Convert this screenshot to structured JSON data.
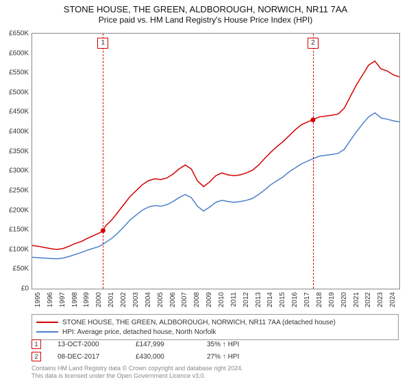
{
  "title": "STONE HOUSE, THE GREEN, ALDBOROUGH, NORWICH, NR11 7AA",
  "subtitle": "Price paid vs. HM Land Registry's House Price Index (HPI)",
  "chart": {
    "type": "line",
    "background_color": "#ffffff",
    "grid_color": "#e9e9e9",
    "axis_color": "#888888",
    "tick_fontsize": 10,
    "ylim": [
      0,
      650000
    ],
    "ytick_step": 50000,
    "ytick_labels": [
      "£0",
      "£50K",
      "£100K",
      "£150K",
      "£200K",
      "£250K",
      "£300K",
      "£350K",
      "£400K",
      "£450K",
      "£500K",
      "£550K",
      "£600K",
      "£650K"
    ],
    "xlim": [
      1995,
      2025
    ],
    "xtick_labels": [
      "1995",
      "1996",
      "1997",
      "1998",
      "1999",
      "2000",
      "2001",
      "2002",
      "2003",
      "2004",
      "2005",
      "2006",
      "2007",
      "2008",
      "2009",
      "2010",
      "2011",
      "2012",
      "2013",
      "2014",
      "2015",
      "2016",
      "2017",
      "2018",
      "2019",
      "2020",
      "2021",
      "2022",
      "2023",
      "2024"
    ],
    "series": [
      {
        "name": "price_paid",
        "label": "STONE HOUSE, THE GREEN, ALDBOROUGH, NORWICH, NR11 7AA (detached house)",
        "color": "#d40000",
        "line_width": 1.5,
        "data": [
          [
            1995,
            110000
          ],
          [
            1995.5,
            108000
          ],
          [
            1996,
            105000
          ],
          [
            1996.5,
            102000
          ],
          [
            1997,
            100000
          ],
          [
            1997.5,
            102000
          ],
          [
            1998,
            108000
          ],
          [
            1998.5,
            115000
          ],
          [
            1999,
            120000
          ],
          [
            1999.5,
            128000
          ],
          [
            2000,
            135000
          ],
          [
            2000.5,
            142000
          ],
          [
            2000.79,
            147999
          ],
          [
            2001,
            160000
          ],
          [
            2001.5,
            175000
          ],
          [
            2002,
            195000
          ],
          [
            2002.5,
            215000
          ],
          [
            2003,
            235000
          ],
          [
            2003.5,
            250000
          ],
          [
            2004,
            265000
          ],
          [
            2004.5,
            275000
          ],
          [
            2005,
            280000
          ],
          [
            2005.5,
            278000
          ],
          [
            2006,
            282000
          ],
          [
            2006.5,
            292000
          ],
          [
            2007,
            305000
          ],
          [
            2007.5,
            315000
          ],
          [
            2008,
            305000
          ],
          [
            2008.5,
            275000
          ],
          [
            2009,
            260000
          ],
          [
            2009.5,
            272000
          ],
          [
            2010,
            288000
          ],
          [
            2010.5,
            295000
          ],
          [
            2011,
            290000
          ],
          [
            2011.5,
            288000
          ],
          [
            2012,
            290000
          ],
          [
            2012.5,
            295000
          ],
          [
            2013,
            302000
          ],
          [
            2013.5,
            315000
          ],
          [
            2014,
            332000
          ],
          [
            2014.5,
            348000
          ],
          [
            2015,
            362000
          ],
          [
            2015.5,
            375000
          ],
          [
            2016,
            390000
          ],
          [
            2016.5,
            405000
          ],
          [
            2017,
            418000
          ],
          [
            2017.5,
            425000
          ],
          [
            2017.94,
            430000
          ],
          [
            2018,
            432000
          ],
          [
            2018.5,
            438000
          ],
          [
            2019,
            440000
          ],
          [
            2019.5,
            442000
          ],
          [
            2020,
            445000
          ],
          [
            2020.5,
            460000
          ],
          [
            2021,
            490000
          ],
          [
            2021.5,
            520000
          ],
          [
            2022,
            545000
          ],
          [
            2022.5,
            570000
          ],
          [
            2023,
            580000
          ],
          [
            2023.5,
            560000
          ],
          [
            2024,
            555000
          ],
          [
            2024.5,
            545000
          ],
          [
            2025,
            540000
          ]
        ]
      },
      {
        "name": "hpi",
        "label": "HPI: Average price, detached house, North Norfolk",
        "color": "#4a7fc9",
        "line_width": 1.5,
        "data": [
          [
            1995,
            80000
          ],
          [
            1995.5,
            79000
          ],
          [
            1996,
            78000
          ],
          [
            1996.5,
            77000
          ],
          [
            1997,
            76000
          ],
          [
            1997.5,
            78000
          ],
          [
            1998,
            82000
          ],
          [
            1998.5,
            87000
          ],
          [
            1999,
            92000
          ],
          [
            1999.5,
            98000
          ],
          [
            2000,
            103000
          ],
          [
            2000.5,
            108000
          ],
          [
            2001,
            118000
          ],
          [
            2001.5,
            128000
          ],
          [
            2002,
            142000
          ],
          [
            2002.5,
            158000
          ],
          [
            2003,
            175000
          ],
          [
            2003.5,
            188000
          ],
          [
            2004,
            200000
          ],
          [
            2004.5,
            208000
          ],
          [
            2005,
            212000
          ],
          [
            2005.5,
            210000
          ],
          [
            2006,
            214000
          ],
          [
            2006.5,
            222000
          ],
          [
            2007,
            232000
          ],
          [
            2007.5,
            240000
          ],
          [
            2008,
            232000
          ],
          [
            2008.5,
            210000
          ],
          [
            2009,
            198000
          ],
          [
            2009.5,
            208000
          ],
          [
            2010,
            220000
          ],
          [
            2010.5,
            225000
          ],
          [
            2011,
            222000
          ],
          [
            2011.5,
            220000
          ],
          [
            2012,
            222000
          ],
          [
            2012.5,
            225000
          ],
          [
            2013,
            230000
          ],
          [
            2013.5,
            240000
          ],
          [
            2014,
            252000
          ],
          [
            2014.5,
            265000
          ],
          [
            2015,
            275000
          ],
          [
            2015.5,
            285000
          ],
          [
            2016,
            298000
          ],
          [
            2016.5,
            308000
          ],
          [
            2017,
            318000
          ],
          [
            2017.5,
            325000
          ],
          [
            2018,
            332000
          ],
          [
            2018.5,
            338000
          ],
          [
            2019,
            340000
          ],
          [
            2019.5,
            342000
          ],
          [
            2020,
            345000
          ],
          [
            2020.5,
            355000
          ],
          [
            2021,
            378000
          ],
          [
            2021.5,
            400000
          ],
          [
            2022,
            420000
          ],
          [
            2022.5,
            438000
          ],
          [
            2023,
            448000
          ],
          [
            2023.5,
            435000
          ],
          [
            2024,
            432000
          ],
          [
            2024.5,
            428000
          ],
          [
            2025,
            425000
          ]
        ]
      }
    ],
    "marker_color": "#d40000",
    "marker_box_border": "#d40000",
    "markers": [
      {
        "n": "1",
        "x": 2000.79,
        "y": 147999
      },
      {
        "n": "2",
        "x": 2017.94,
        "y": 430000
      }
    ]
  },
  "legend": {
    "border_color": "#999999",
    "fontsize": 10
  },
  "events": [
    {
      "n": "1",
      "date": "13-OCT-2000",
      "price": "£147,999",
      "delta": "35% ↑ HPI",
      "box_color": "#d40000"
    },
    {
      "n": "2",
      "date": "08-DEC-2017",
      "price": "£430,000",
      "delta": "27% ↑ HPI",
      "box_color": "#d40000"
    }
  ],
  "footer": {
    "line1": "Contains HM Land Registry data © Crown copyright and database right 2024.",
    "line2": "This data is licensed under the Open Government Licence v3.0.",
    "color": "#888888",
    "fontsize": 9
  }
}
